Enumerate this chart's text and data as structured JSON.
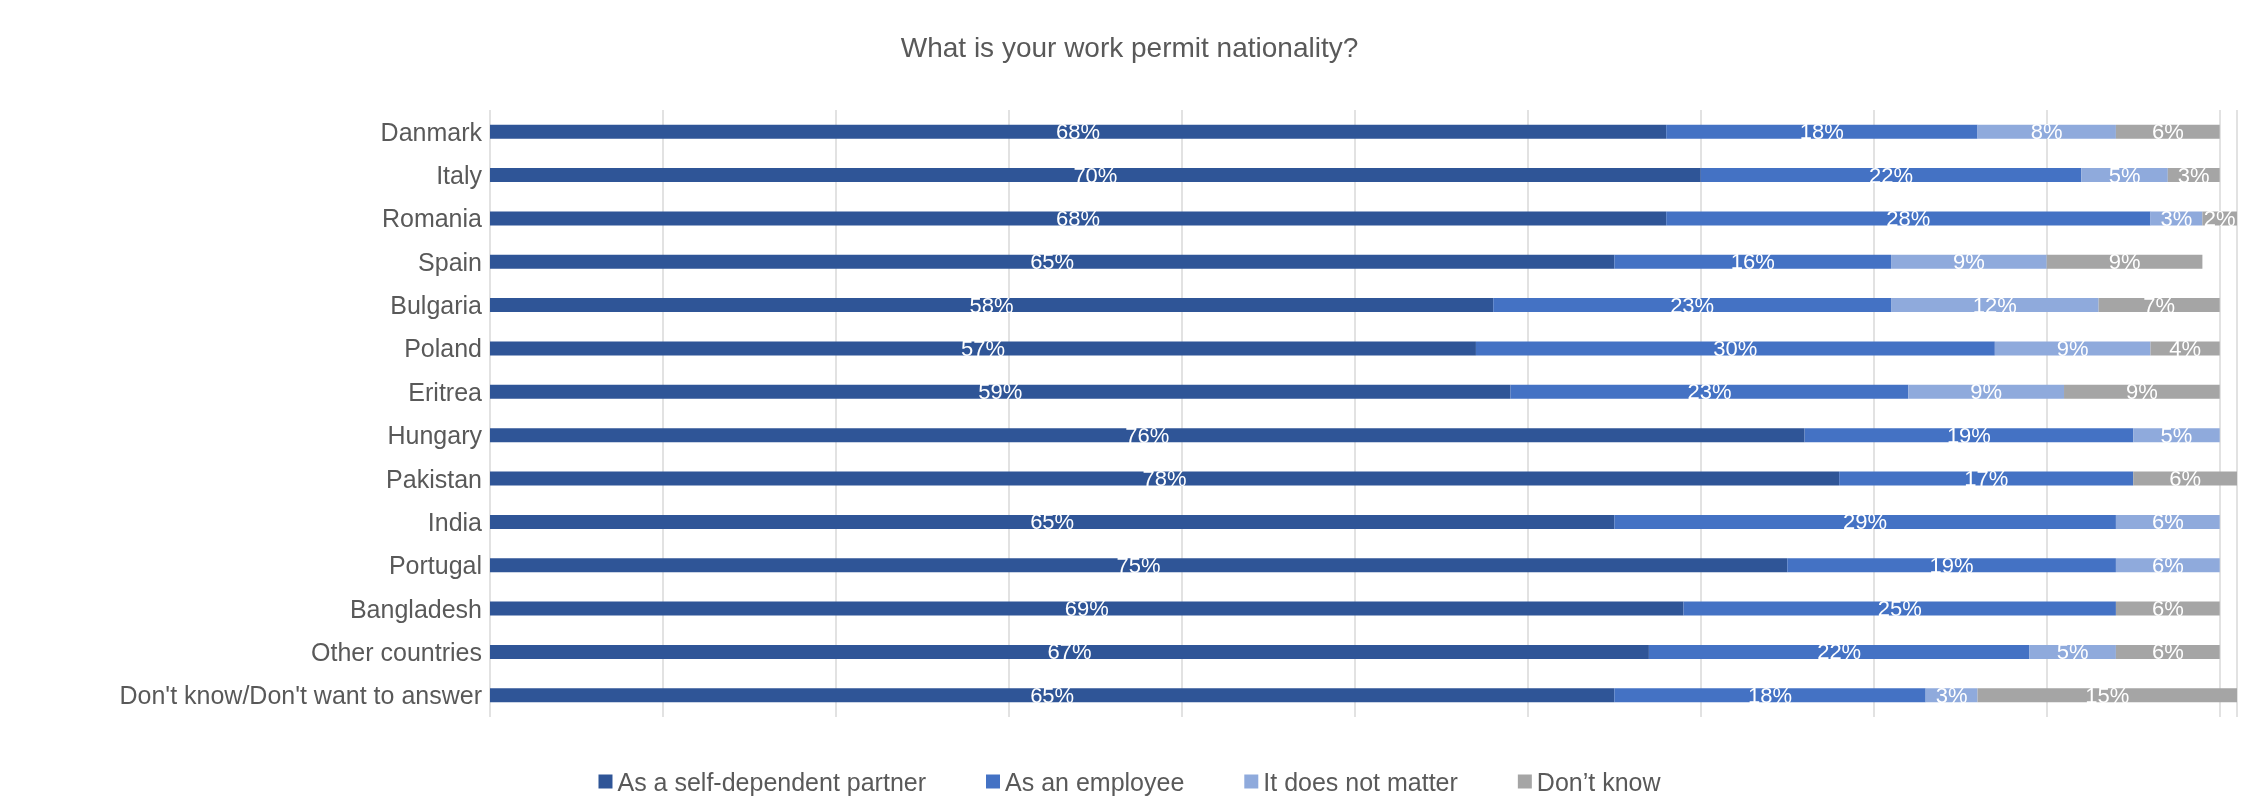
{
  "chart_data": {
    "type": "bar",
    "orientation": "horizontal",
    "stacked": true,
    "title": "What is your work permit nationality?",
    "grid": "x",
    "legend": "bottom",
    "tick_labels": "y",
    "categories": [
      "Danmark",
      "Italy",
      "Romania",
      "Spain",
      "Bulgaria",
      "Poland",
      "Eritrea",
      "Hungary",
      "Pakistan",
      "India",
      "Portugal",
      "Bangladesh",
      "Other countries",
      "Don't know/Don't want to answer"
    ],
    "series": [
      {
        "name": "As a self-dependent partner",
        "color": "#2f5597",
        "values": [
          68,
          70,
          68,
          65,
          58,
          57,
          59,
          76,
          78,
          65,
          75,
          69,
          67,
          65
        ],
        "value_labels": [
          "68%",
          "70%",
          "68%",
          "65%",
          "58%",
          "57%",
          "59%",
          "76%",
          "78%",
          "65%",
          "75%",
          "69%",
          "67%",
          "65%"
        ]
      },
      {
        "name": "As an employee",
        "color": "#4472c4",
        "values": [
          18,
          22,
          28,
          16,
          23,
          30,
          23,
          19,
          17,
          29,
          19,
          25,
          22,
          18
        ],
        "value_labels": [
          "18%",
          "22%",
          "28%",
          "16%",
          "23%",
          "30%",
          "23%",
          "19%",
          "17%",
          "29%",
          "19%",
          "25%",
          "22%",
          "18%"
        ]
      },
      {
        "name": "It does not matter",
        "color": "#8faadc",
        "values": [
          8,
          5,
          3,
          9,
          12,
          9,
          9,
          5,
          null,
          6,
          6,
          null,
          5,
          3
        ],
        "value_labels": [
          "8%",
          "5%",
          "3%",
          "9%",
          "12%",
          "9%",
          "9%",
          "5%",
          null,
          "6%",
          "6%",
          null,
          "5%",
          "3%"
        ]
      },
      {
        "name": "Don’t know",
        "color": "#a5a5a5",
        "values": [
          6,
          3,
          2,
          9,
          7,
          4,
          9,
          null,
          6,
          null,
          null,
          6,
          6,
          15
        ],
        "value_labels": [
          "6%",
          "3%",
          "2%",
          "9%",
          "7%",
          "4%",
          "9%",
          null,
          "6%",
          null,
          null,
          "6%",
          "6%",
          "15%"
        ]
      }
    ]
  }
}
